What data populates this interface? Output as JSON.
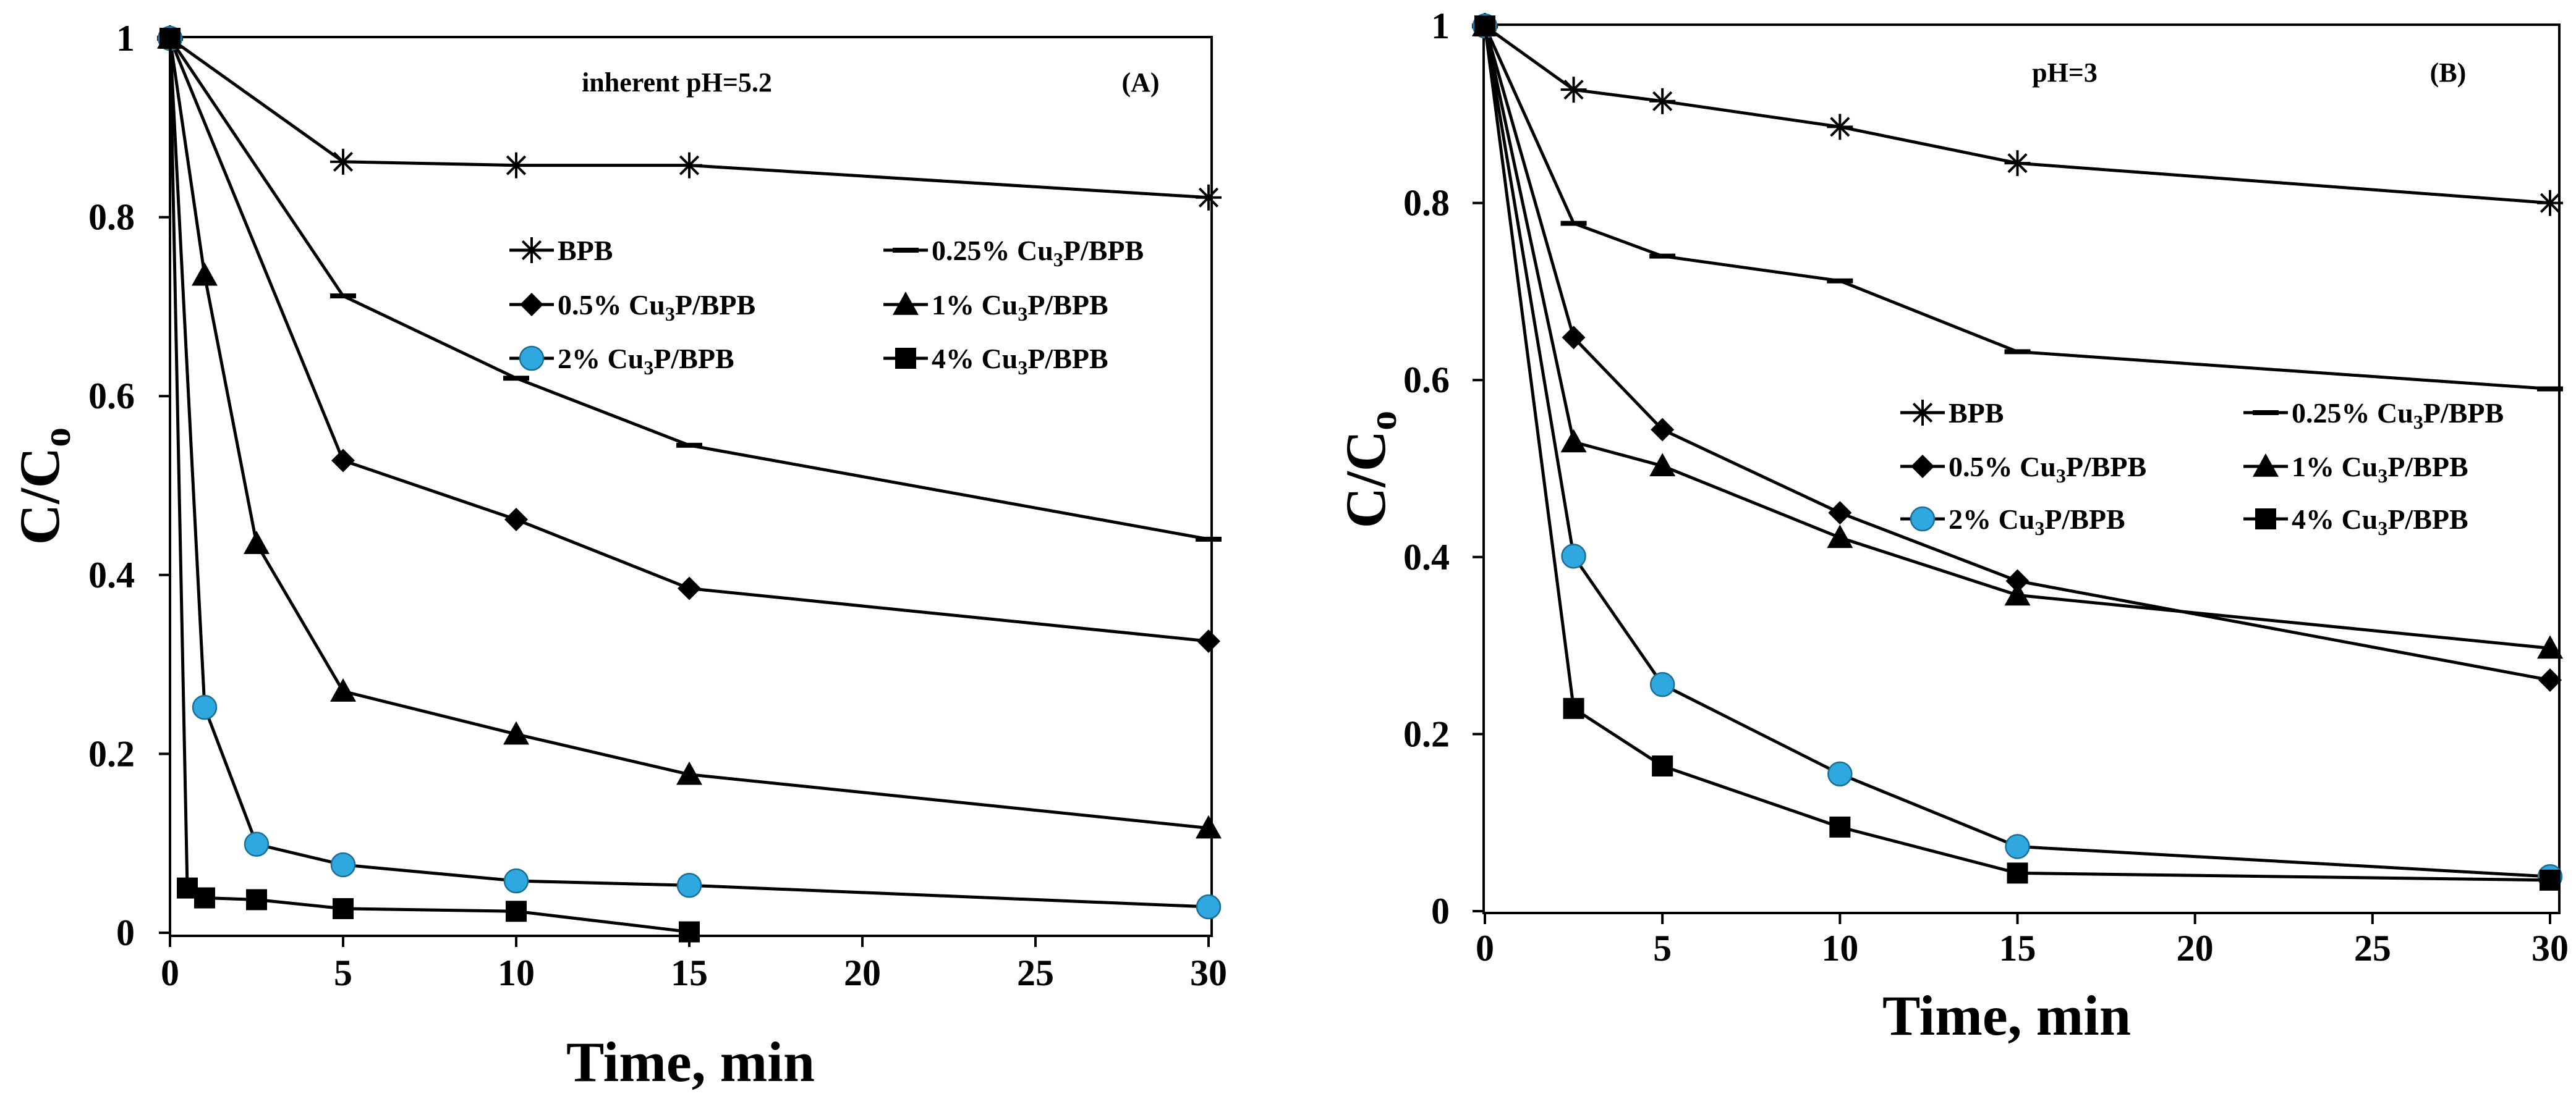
{
  "chart_data": [
    {
      "id": "A",
      "type": "line",
      "panel_label": "(A)",
      "annotation": "inherent pH=5.2",
      "xlabel": "Time, min",
      "ylabel": "C/Co",
      "ylabel_main": "C/C",
      "ylabel_sub": "o",
      "xlim": [
        0,
        30
      ],
      "ylim": [
        0,
        1
      ],
      "xticks": [
        0,
        5,
        10,
        15,
        20,
        25,
        30
      ],
      "yticks": [
        0,
        0.2,
        0.4,
        0.6,
        0.8,
        1
      ],
      "ytick_labels": [
        "0",
        "0.2",
        "0.4",
        "0.6",
        "0.8",
        "1"
      ],
      "series": [
        {
          "name": "BPB",
          "label_pre": "BPB",
          "label_sub": "",
          "label_post": "",
          "marker": "star",
          "x": [
            0,
            5,
            10,
            15,
            30
          ],
          "y": [
            1.0,
            0.862,
            0.858,
            0.858,
            0.822
          ]
        },
        {
          "name": "0.25% Cu3P/BPB",
          "label_pre": "0.25% Cu",
          "label_sub": "3",
          "label_post": "P/BPB",
          "marker": "dash",
          "x": [
            0,
            5,
            10,
            15,
            30
          ],
          "y": [
            1.0,
            0.712,
            0.62,
            0.545,
            0.44
          ]
        },
        {
          "name": "0.5% Cu3P/BPB",
          "label_pre": "0.5% Cu",
          "label_sub": "3",
          "label_post": "P/BPB",
          "marker": "diamond",
          "x": [
            0,
            5,
            10,
            15,
            30
          ],
          "y": [
            1.0,
            0.528,
            0.462,
            0.385,
            0.326
          ]
        },
        {
          "name": "1% Cu3P/BPB",
          "label_pre": "1% Cu",
          "label_sub": "3",
          "label_post": "P/BPB",
          "marker": "triangle",
          "x": [
            0,
            1,
            2.5,
            5,
            10,
            15,
            30
          ],
          "y": [
            1.0,
            0.735,
            0.435,
            0.27,
            0.222,
            0.177,
            0.117
          ]
        },
        {
          "name": "2% Cu3P/BPB",
          "label_pre": "2% Cu",
          "label_sub": "3",
          "label_post": "P/BPB",
          "marker": "circle",
          "x": [
            0,
            1,
            2.5,
            5,
            10,
            15,
            30
          ],
          "y": [
            1.0,
            0.252,
            0.099,
            0.076,
            0.058,
            0.053,
            0.029
          ]
        },
        {
          "name": "4% Cu3P/BPB",
          "label_pre": "4% Cu",
          "label_sub": "3",
          "label_post": "P/BPB",
          "marker": "square",
          "x": [
            0,
            0.5,
            1,
            2.5,
            5,
            10,
            15
          ],
          "y": [
            1.0,
            0.05,
            0.039,
            0.037,
            0.027,
            0.024,
            0.001
          ]
        }
      ]
    },
    {
      "id": "B",
      "type": "line",
      "panel_label": "(B)",
      "annotation": "pH=3",
      "xlabel": "Time, min",
      "ylabel": "C/Co",
      "ylabel_main": "C/C",
      "ylabel_sub": "o",
      "xlim": [
        0,
        30
      ],
      "ylim": [
        0,
        1
      ],
      "xticks": [
        0,
        5,
        10,
        15,
        20,
        25,
        30
      ],
      "yticks": [
        0,
        0.2,
        0.4,
        0.6,
        0.8,
        1
      ],
      "ytick_labels": [
        "0",
        "0.2",
        "0.4",
        "0.6",
        "0.8",
        "1"
      ],
      "series": [
        {
          "name": "BPB",
          "label_pre": "BPB",
          "label_sub": "",
          "label_post": "",
          "marker": "star",
          "x": [
            0,
            2.5,
            5,
            10,
            15,
            30
          ],
          "y": [
            1.0,
            0.928,
            0.915,
            0.886,
            0.845,
            0.8
          ]
        },
        {
          "name": "0.25% Cu3P/BPB",
          "label_pre": "0.25% Cu",
          "label_sub": "3",
          "label_post": "P/BPB",
          "marker": "dash",
          "x": [
            0,
            2.5,
            5,
            10,
            15,
            30
          ],
          "y": [
            1.0,
            0.777,
            0.74,
            0.712,
            0.632,
            0.59
          ]
        },
        {
          "name": "0.5% Cu3P/BPB",
          "label_pre": "0.5% Cu",
          "label_sub": "3",
          "label_post": "P/BPB",
          "marker": "diamond",
          "x": [
            0,
            2.5,
            5,
            10,
            15,
            30
          ],
          "y": [
            1.0,
            0.648,
            0.544,
            0.45,
            0.373,
            0.261
          ]
        },
        {
          "name": "1% Cu3P/BPB",
          "label_pre": "1% Cu",
          "label_sub": "3",
          "label_post": "P/BPB",
          "marker": "triangle",
          "x": [
            0,
            2.5,
            5,
            10,
            15,
            30
          ],
          "y": [
            1.0,
            0.53,
            0.503,
            0.422,
            0.357,
            0.297
          ]
        },
        {
          "name": "2% Cu3P/BPB",
          "label_pre": "2% Cu",
          "label_sub": "3",
          "label_post": "P/BPB",
          "marker": "circle",
          "x": [
            0,
            2.5,
            5,
            10,
            15,
            30
          ],
          "y": [
            1.0,
            0.401,
            0.256,
            0.155,
            0.073,
            0.039
          ]
        },
        {
          "name": "4% Cu3P/BPB",
          "label_pre": "4% Cu",
          "label_sub": "3",
          "label_post": "P/BPB",
          "marker": "square",
          "x": [
            0,
            2.5,
            5,
            10,
            15,
            30
          ],
          "y": [
            1.0,
            0.229,
            0.164,
            0.095,
            0.043,
            0.035
          ]
        }
      ]
    }
  ],
  "colors": {
    "axis": "#000000",
    "line": "#000000",
    "marker_fill": "#000000",
    "circle_fill": "#2ea8df",
    "background": "#ffffff"
  }
}
